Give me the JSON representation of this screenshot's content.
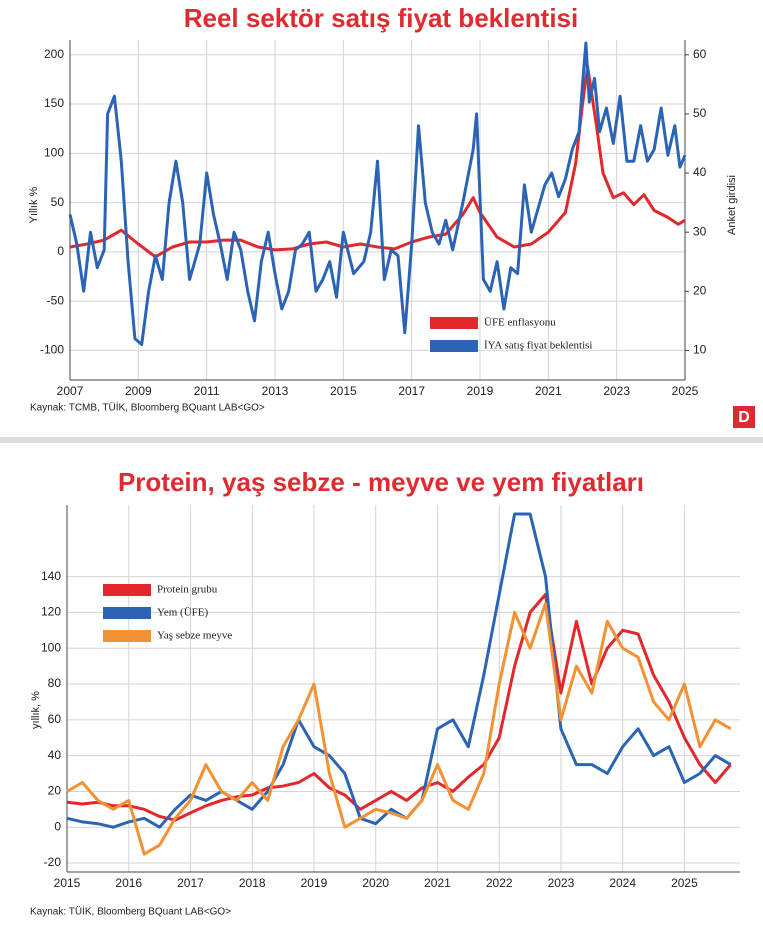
{
  "chart_data": [
    {
      "type": "line",
      "title": "Reel sektör satış fiyat beklentisi",
      "ylabel": "Yıllık %",
      "y2label": "Anket girdisi",
      "source": "Kaynak: TCMB, TÜİK, Bloomberg BQuant LAB<GO>",
      "logo": "D",
      "xlim": [
        2007,
        2025
      ],
      "xticks": [
        2007,
        2009,
        2011,
        2013,
        2015,
        2017,
        2019,
        2021,
        2023,
        2025
      ],
      "ylim": [
        -130,
        215
      ],
      "yticks": [
        -100,
        -50,
        0,
        50,
        100,
        150,
        200
      ],
      "y2lim": [
        5,
        62.5
      ],
      "y2ticks": [
        10,
        20,
        30,
        40,
        50,
        60
      ],
      "grid": true,
      "legend": "lower right",
      "series": [
        {
          "name": "ÜFE enflasyonu",
          "color": "#e3282c",
          "x": [
            2007,
            2007.5,
            2008,
            2008.5,
            2009,
            2009.5,
            2010,
            2010.5,
            2011,
            2011.5,
            2012,
            2012.5,
            2013,
            2013.5,
            2014,
            2014.5,
            2015,
            2015.5,
            2016,
            2016.5,
            2017,
            2017.5,
            2018,
            2018.5,
            2018.8,
            2019,
            2019.5,
            2020,
            2020.5,
            2021,
            2021.5,
            2021.8,
            2022,
            2022.15,
            2022.4,
            2022.6,
            2022.9,
            2023.2,
            2023.5,
            2023.8,
            2024.1,
            2024.5,
            2024.8,
            2025
          ],
          "values": [
            5,
            8,
            12,
            22,
            8,
            -5,
            5,
            10,
            10,
            12,
            12,
            5,
            2,
            3,
            8,
            10,
            5,
            8,
            5,
            3,
            10,
            15,
            18,
            38,
            55,
            40,
            15,
            5,
            8,
            20,
            40,
            90,
            150,
            188,
            130,
            80,
            55,
            60,
            48,
            58,
            42,
            35,
            28,
            32
          ]
        },
        {
          "name": "İYA satış fiyat beklentisi",
          "color": "#2b64b5",
          "axis": "y2",
          "x": [
            2007,
            2007.2,
            2007.4,
            2007.6,
            2007.8,
            2008,
            2008.1,
            2008.3,
            2008.5,
            2008.7,
            2008.9,
            2009.1,
            2009.3,
            2009.5,
            2009.7,
            2009.9,
            2010.1,
            2010.3,
            2010.5,
            2010.8,
            2011,
            2011.2,
            2011.4,
            2011.6,
            2011.8,
            2012,
            2012.2,
            2012.4,
            2012.6,
            2012.8,
            2013,
            2013.2,
            2013.4,
            2013.6,
            2013.8,
            2014,
            2014.2,
            2014.4,
            2014.6,
            2014.8,
            2015,
            2015.3,
            2015.6,
            2015.8,
            2016,
            2016.2,
            2016.4,
            2016.6,
            2016.8,
            2017,
            2017.2,
            2017.4,
            2017.6,
            2017.8,
            2018,
            2018.2,
            2018.5,
            2018.8,
            2018.9,
            2019.1,
            2019.3,
            2019.5,
            2019.7,
            2019.9,
            2020.1,
            2020.3,
            2020.5,
            2020.7,
            2020.9,
            2021.1,
            2021.3,
            2021.5,
            2021.7,
            2021.9,
            2022,
            2022.1,
            2022.2,
            2022.35,
            2022.5,
            2022.7,
            2022.9,
            2023.1,
            2023.3,
            2023.5,
            2023.7,
            2023.9,
            2024.1,
            2024.3,
            2024.5,
            2024.7,
            2024.85,
            2025
          ],
          "values": [
            33,
            28,
            20,
            30,
            24,
            27,
            50,
            53,
            42,
            25,
            12,
            11,
            20,
            26,
            22,
            35,
            42,
            35,
            22,
            28,
            40,
            33,
            28,
            22,
            30,
            27,
            20,
            15,
            25,
            30,
            23,
            17,
            20,
            27,
            28,
            30,
            20,
            22,
            25,
            19,
            30,
            23,
            25,
            30,
            42,
            22,
            27,
            26,
            13,
            28,
            48,
            35,
            30,
            28,
            32,
            27,
            35,
            44,
            50,
            22,
            20,
            25,
            17,
            24,
            23,
            38,
            30,
            34,
            38,
            40,
            36,
            39,
            44,
            47,
            55,
            62,
            52,
            56,
            47,
            51,
            45,
            53,
            42,
            42,
            48,
            42,
            44,
            51,
            43,
            48,
            41,
            43
          ]
        }
      ]
    },
    {
      "type": "line",
      "title": "Protein, yaş sebze - meyve ve yem fiyatları",
      "ylabel": "yıllık, %",
      "source": "Kaynak: TÜİK, Bloomberg BQuant LAB<GO>",
      "xlim": [
        2015,
        2025.9
      ],
      "xticks": [
        2015,
        2016,
        2017,
        2018,
        2019,
        2020,
        2021,
        2022,
        2023,
        2024,
        2025
      ],
      "ylim": [
        -25,
        180
      ],
      "yticks": [
        -20,
        0,
        20,
        40,
        60,
        80,
        100,
        120,
        140
      ],
      "grid": true,
      "legend": "upper left",
      "x": [
        2015,
        2015.25,
        2015.5,
        2015.75,
        2016,
        2016.25,
        2016.5,
        2016.75,
        2017,
        2017.25,
        2017.5,
        2017.75,
        2018,
        2018.25,
        2018.5,
        2018.75,
        2019,
        2019.25,
        2019.5,
        2019.75,
        2020,
        2020.25,
        2020.5,
        2020.75,
        2021,
        2021.25,
        2021.5,
        2021.75,
        2022,
        2022.25,
        2022.5,
        2022.75,
        2023,
        2023.25,
        2023.5,
        2023.75,
        2024,
        2024.25,
        2024.5,
        2024.75,
        2025,
        2025.25,
        2025.5,
        2025.75
      ],
      "series": [
        {
          "name": "Protein grubu",
          "color": "#e3282c",
          "values": [
            14,
            13,
            14,
            12,
            12,
            10,
            6,
            4,
            8,
            12,
            15,
            17,
            18,
            22,
            23,
            25,
            30,
            22,
            18,
            10,
            15,
            20,
            15,
            22,
            25,
            20,
            28,
            35,
            50,
            90,
            120,
            130,
            75,
            115,
            80,
            100,
            110,
            108,
            85,
            70,
            50,
            35,
            25,
            35
          ]
        },
        {
          "name": "Yem (ÜFE)",
          "color": "#2b64b5",
          "values": [
            5,
            3,
            2,
            0,
            3,
            5,
            0,
            10,
            18,
            15,
            20,
            15,
            10,
            20,
            35,
            60,
            45,
            40,
            30,
            5,
            2,
            10,
            5,
            15,
            55,
            60,
            45,
            85,
            130,
            175,
            175,
            140,
            55,
            35,
            35,
            30,
            45,
            55,
            40,
            45,
            25,
            30,
            40,
            35
          ]
        },
        {
          "name": "Yaş sebze meyve",
          "color": "#f39234",
          "values": [
            20,
            25,
            15,
            10,
            15,
            -15,
            -10,
            5,
            15,
            35,
            20,
            15,
            25,
            15,
            45,
            60,
            80,
            30,
            0,
            5,
            10,
            8,
            5,
            15,
            35,
            15,
            10,
            30,
            80,
            120,
            100,
            125,
            60,
            90,
            75,
            115,
            100,
            95,
            70,
            60,
            80,
            45,
            60,
            55
          ]
        }
      ]
    }
  ]
}
